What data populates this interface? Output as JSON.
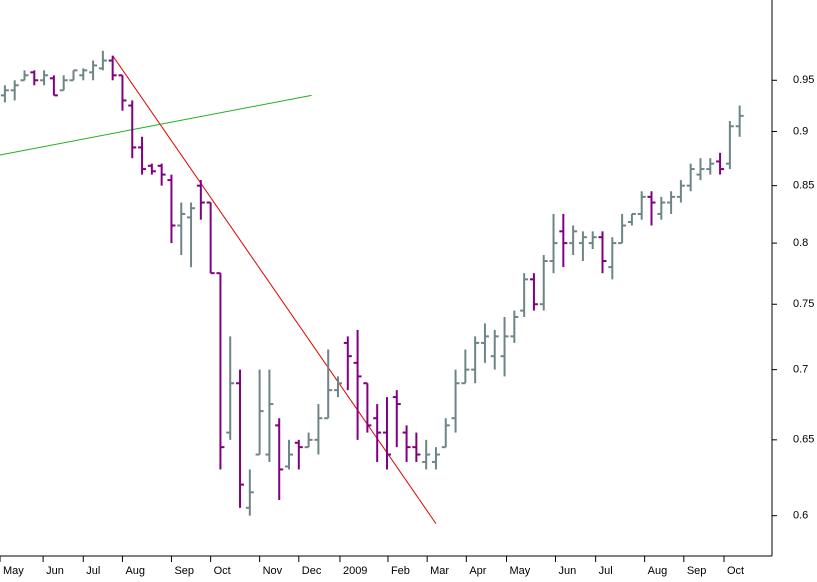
{
  "chart_data": {
    "type": "ohlc",
    "categories": [
      null,
      null,
      null,
      null,
      null,
      null,
      null,
      null,
      null,
      null,
      null,
      null,
      null,
      null,
      null,
      null,
      null,
      null,
      null,
      null,
      null,
      null,
      null,
      null,
      null,
      null,
      null,
      null,
      null,
      null,
      null,
      null,
      null,
      null,
      null,
      null,
      null,
      null,
      null,
      null,
      null,
      null,
      null,
      null,
      null,
      null,
      null,
      null,
      null,
      null,
      null,
      null,
      null,
      null,
      null,
      null,
      null,
      null,
      null,
      null,
      null,
      null,
      null,
      null,
      null,
      null,
      null,
      null,
      null,
      null,
      null,
      null,
      null,
      null,
      null,
      null
    ],
    "open": [
      0.935,
      0.94,
      0.95,
      0.958,
      0.95,
      0.952,
      0.94,
      0.95,
      0.955,
      0.958,
      0.962,
      0.97,
      0.955,
      0.925,
      0.885,
      0.868,
      0.868,
      0.855,
      0.815,
      0.822,
      0.85,
      0.835,
      0.775,
      0.655,
      0.69,
      0.605,
      0.64,
      0.64,
      0.66,
      0.632,
      0.648,
      0.645,
      0.65,
      0.665,
      0.685,
      0.72,
      0.705,
      0.69,
      0.665,
      0.655,
      0.68,
      0.655,
      0.645,
      0.635,
      0.635,
      0.645,
      0.665,
      0.69,
      0.7,
      0.72,
      0.71,
      0.71,
      0.725,
      0.745,
      0.77,
      0.75,
      0.785,
      0.81,
      0.8,
      0.8,
      0.8,
      0.805,
      0.78,
      0.8,
      0.818,
      0.825,
      0.84,
      0.825,
      0.835,
      0.84,
      0.85,
      0.86,
      0.865,
      0.872,
      0.87,
      0.905
    ],
    "high": [
      0.945,
      0.95,
      0.96,
      0.96,
      0.96,
      0.955,
      0.955,
      0.96,
      0.962,
      0.97,
      0.98,
      0.975,
      0.955,
      0.93,
      0.895,
      0.87,
      0.87,
      0.86,
      0.835,
      0.835,
      0.855,
      0.835,
      0.775,
      0.725,
      0.7,
      0.63,
      0.7,
      0.7,
      0.665,
      0.65,
      0.65,
      0.655,
      0.675,
      0.715,
      0.695,
      0.725,
      0.73,
      0.69,
      0.675,
      0.68,
      0.685,
      0.66,
      0.655,
      0.65,
      0.645,
      0.665,
      0.7,
      0.715,
      0.725,
      0.735,
      0.73,
      0.74,
      0.745,
      0.775,
      0.775,
      0.79,
      0.825,
      0.825,
      0.815,
      0.81,
      0.81,
      0.81,
      0.805,
      0.825,
      0.825,
      0.845,
      0.845,
      0.84,
      0.845,
      0.855,
      0.87,
      0.875,
      0.875,
      0.88,
      0.91,
      0.925
    ],
    "low": [
      0.928,
      0.93,
      0.95,
      0.945,
      0.945,
      0.935,
      0.94,
      0.95,
      0.95,
      0.95,
      0.96,
      0.95,
      0.92,
      0.875,
      0.86,
      0.86,
      0.85,
      0.8,
      0.79,
      0.78,
      0.82,
      0.775,
      0.63,
      0.65,
      0.605,
      0.6,
      0.64,
      0.635,
      0.61,
      0.63,
      0.63,
      0.645,
      0.64,
      0.665,
      0.68,
      0.685,
      0.65,
      0.655,
      0.635,
      0.63,
      0.645,
      0.635,
      0.635,
      0.63,
      0.63,
      0.645,
      0.655,
      0.69,
      0.69,
      0.705,
      0.7,
      0.695,
      0.72,
      0.74,
      0.745,
      0.745,
      0.775,
      0.78,
      0.79,
      0.785,
      0.795,
      0.775,
      0.77,
      0.8,
      0.815,
      0.82,
      0.815,
      0.82,
      0.825,
      0.835,
      0.845,
      0.855,
      0.86,
      0.86,
      0.865,
      0.895
    ],
    "close": [
      0.94,
      0.945,
      0.955,
      0.95,
      0.955,
      0.935,
      0.95,
      0.96,
      0.96,
      0.965,
      0.97,
      0.955,
      0.93,
      0.885,
      0.865,
      0.863,
      0.86,
      0.815,
      0.825,
      0.83,
      0.835,
      0.775,
      0.645,
      0.69,
      0.62,
      0.615,
      0.67,
      0.675,
      0.63,
      0.64,
      0.645,
      0.65,
      0.665,
      0.685,
      0.69,
      0.71,
      0.695,
      0.66,
      0.655,
      0.64,
      0.675,
      0.645,
      0.64,
      0.64,
      0.64,
      0.66,
      0.69,
      0.7,
      0.72,
      0.725,
      0.725,
      0.725,
      0.74,
      0.77,
      0.75,
      0.785,
      0.8,
      0.8,
      0.81,
      0.805,
      0.805,
      0.785,
      0.8,
      0.815,
      0.825,
      0.84,
      0.835,
      0.835,
      0.84,
      0.85,
      0.865,
      0.865,
      0.87,
      0.865,
      0.905,
      0.915
    ],
    "up_color": "#6e8587",
    "down_color": "#800080",
    "xlim": [
      -0.5,
      78.3
    ],
    "xticks": [
      {
        "value": -0.5,
        "label": "May"
      },
      {
        "value": 3.9,
        "label": "Jun"
      },
      {
        "value": 8,
        "label": "Jul"
      },
      {
        "value": 12,
        "label": "Aug"
      },
      {
        "value": 17,
        "label": "Sep"
      },
      {
        "value": 21,
        "label": "Oct"
      },
      {
        "value": 26,
        "label": "Nov"
      },
      {
        "value": 30,
        "label": "Dec"
      },
      {
        "value": 34.2,
        "label": "2009"
      },
      {
        "value": 39.1,
        "label": "Feb"
      },
      {
        "value": 43.1,
        "label": "Mar"
      },
      {
        "value": 47.1,
        "label": "Apr"
      },
      {
        "value": 51.2,
        "label": "May"
      },
      {
        "value": 56.2,
        "label": "Jun"
      },
      {
        "value": 60.3,
        "label": "Jul"
      },
      {
        "value": 65.3,
        "label": "Aug"
      },
      {
        "value": 69.3,
        "label": "Sep"
      },
      {
        "value": 73.4,
        "label": "Oct"
      }
    ],
    "ylim": [
      0.575,
      1.034
    ],
    "log_scale": true,
    "yticks": [
      0.6,
      0.65,
      0.7,
      0.75,
      0.8,
      0.85,
      0.9,
      0.95
    ],
    "trendlines": [
      {
        "color": "#e00000",
        "x": [
          11,
          44
        ],
        "y": [
          0.975,
          0.595
        ]
      },
      {
        "color": "#20b020",
        "x": [
          -0.5,
          31.3
        ],
        "y": [
          0.878,
          0.935
        ]
      }
    ]
  }
}
